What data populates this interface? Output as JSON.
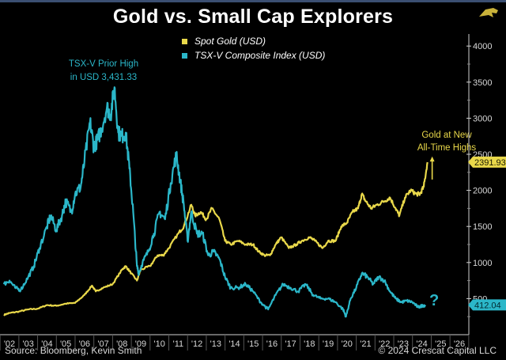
{
  "header": {
    "title": "Gold vs. Small Cap Explorers"
  },
  "legend": [
    {
      "label": "Spot Gold (USD)",
      "color": "#e9d84a"
    },
    {
      "label": "TSX-V Composite Index (USD)",
      "color": "#2bb7c9"
    }
  ],
  "annotations": {
    "tsx_high_line1": "TSX-V Prior High",
    "tsx_high_line2": "in USD 3,431.33",
    "gold_line1": "Gold at New",
    "gold_line2": "All-Time Highs",
    "question_mark": "?"
  },
  "footer": {
    "source": "Source: Bloomberg, Kevin Smith",
    "copyright": "© 2024 Crescat Capital LLC"
  },
  "chart_data": {
    "type": "line",
    "title": "Gold vs. Small Cap Explorers",
    "xlabel": "",
    "ylabel": "",
    "x_tick_labels": [
      "'02",
      "'03",
      "'04",
      "'05",
      "'06",
      "'07",
      "'08",
      "'09",
      "'10",
      "'11",
      "'12",
      "'13",
      "'14",
      "'15",
      "'16",
      "'17",
      "'18",
      "'19",
      "'20",
      "'21",
      "'22",
      "'23",
      "'24",
      "'25",
      "'26"
    ],
    "xlim": [
      2002,
      2026.5
    ],
    "y_tick_labels": [
      "500",
      "1000",
      "1500",
      "2000",
      "2500",
      "3000",
      "3500",
      "4000"
    ],
    "y_ticks": [
      500,
      1000,
      1500,
      2000,
      2500,
      3000,
      3500,
      4000
    ],
    "ylim": [
      0,
      4150
    ],
    "grid": false,
    "legend_position": "top-center",
    "last_value_labels": [
      {
        "series": "Spot Gold (USD)",
        "value": "2391.93",
        "color": "#e9d84a"
      },
      {
        "series": "TSX-V Composite Index (USD)",
        "value": "412.04",
        "color": "#2bb7c9"
      }
    ],
    "series": [
      {
        "name": "Spot Gold (USD)",
        "color": "#e9d84a",
        "x": [
          2001.7,
          2002.0,
          2002.5,
          2003.0,
          2003.5,
          2004.0,
          2004.5,
          2005.0,
          2005.5,
          2006.0,
          2006.4,
          2006.6,
          2007.0,
          2007.5,
          2008.0,
          2008.2,
          2008.5,
          2008.8,
          2009.0,
          2009.5,
          2009.9,
          2010.2,
          2010.5,
          2011.0,
          2011.3,
          2011.7,
          2011.9,
          2012.2,
          2012.5,
          2012.8,
          2013.2,
          2013.5,
          2013.8,
          2014.2,
          2014.6,
          2015.0,
          2015.3,
          2015.6,
          2015.9,
          2016.2,
          2016.5,
          2016.9,
          2017.3,
          2017.6,
          2018.0,
          2018.3,
          2018.7,
          2019.0,
          2019.4,
          2019.7,
          2020.0,
          2020.3,
          2020.6,
          2020.8,
          2021.0,
          2021.3,
          2021.6,
          2022.0,
          2022.3,
          2022.6,
          2022.8,
          2023.1,
          2023.4,
          2023.7,
          2023.9,
          2024.1,
          2024.3
        ],
        "values": [
          275,
          300,
          320,
          350,
          360,
          410,
          400,
          430,
          440,
          550,
          680,
          600,
          650,
          700,
          900,
          950,
          850,
          750,
          900,
          950,
          1100,
          1100,
          1200,
          1400,
          1500,
          1800,
          1650,
          1700,
          1600,
          1750,
          1600,
          1300,
          1250,
          1300,
          1250,
          1250,
          1150,
          1100,
          1100,
          1250,
          1350,
          1200,
          1250,
          1300,
          1350,
          1300,
          1200,
          1300,
          1300,
          1500,
          1550,
          1700,
          1750,
          1950,
          1850,
          1750,
          1800,
          1850,
          1900,
          1750,
          1650,
          1900,
          2000,
          1950,
          1950,
          2050,
          2390
        ]
      },
      {
        "name": "TSX-V Composite Index (USD)",
        "color": "#2bb7c9",
        "x": [
          2001.7,
          2002.0,
          2002.3,
          2002.6,
          2003.0,
          2003.3,
          2003.6,
          2004.0,
          2004.2,
          2004.5,
          2004.8,
          2005.0,
          2005.3,
          2005.5,
          2005.8,
          2006.0,
          2006.3,
          2006.5,
          2006.7,
          2006.9,
          2007.2,
          2007.4,
          2007.6,
          2007.8,
          2008.0,
          2008.2,
          2008.4,
          2008.6,
          2008.8,
          2008.9,
          2009.1,
          2009.4,
          2009.7,
          2010.0,
          2010.3,
          2010.6,
          2010.9,
          2011.1,
          2011.3,
          2011.5,
          2011.7,
          2012.0,
          2012.3,
          2012.6,
          2012.9,
          2013.2,
          2013.5,
          2013.8,
          2014.2,
          2014.6,
          2015.0,
          2015.4,
          2015.8,
          2016.2,
          2016.6,
          2017.0,
          2017.4,
          2017.8,
          2018.2,
          2018.6,
          2019.0,
          2019.4,
          2019.8,
          2019.95,
          2020.2,
          2020.5,
          2020.8,
          2021.1,
          2021.4,
          2021.7,
          2022.0,
          2022.3,
          2022.6,
          2022.9,
          2023.2,
          2023.5,
          2023.8,
          2024.0,
          2024.2
        ],
        "values": [
          700,
          750,
          650,
          620,
          800,
          950,
          1200,
          1500,
          1650,
          1450,
          1650,
          1850,
          1700,
          1950,
          2050,
          2400,
          2950,
          2600,
          2700,
          2850,
          3150,
          3050,
          3430,
          2800,
          2750,
          2800,
          2300,
          1700,
          950,
          850,
          1000,
          1150,
          1400,
          1700,
          1600,
          2100,
          2500,
          2150,
          1800,
          1300,
          1700,
          1400,
          1400,
          1100,
          1150,
          1050,
          800,
          650,
          650,
          700,
          600,
          450,
          350,
          550,
          700,
          650,
          600,
          700,
          550,
          500,
          500,
          450,
          350,
          250,
          500,
          650,
          850,
          800,
          700,
          800,
          750,
          600,
          500,
          450,
          470,
          450,
          380,
          400,
          410
        ]
      }
    ]
  }
}
